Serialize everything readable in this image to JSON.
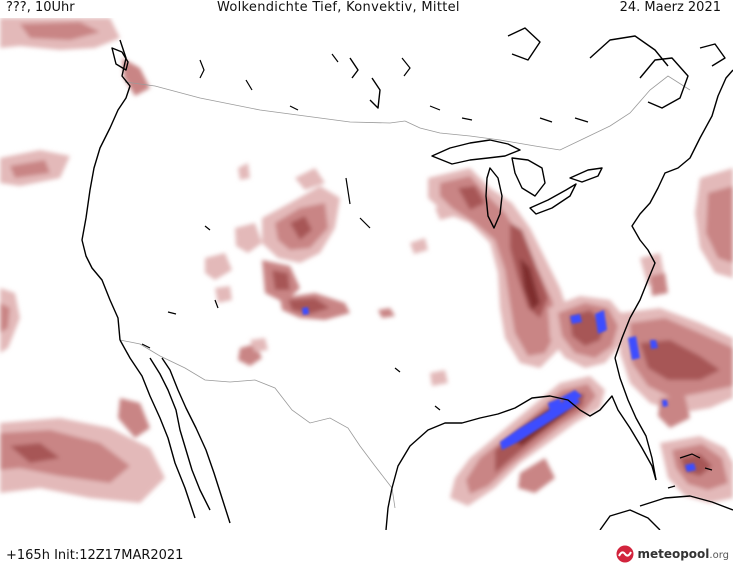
{
  "header": {
    "left_label": "???, 10Uhr",
    "title": "Wolkendichte  Tief, Konvektiv, Mittel",
    "date": "24. Maerz 2021"
  },
  "footer": {
    "run_info": "+165h  Init:12Z17MAR2021",
    "brand": "meteopool",
    "brand_tld": ".org"
  },
  "colors": {
    "cloud_light": "#e3b9b9",
    "cloud_mid": "#c98585",
    "cloud_dark": "#a75656",
    "cloud_max": "#7f2f2f",
    "convective": "#3d4dff",
    "coast": "#000000",
    "border": "#9a9a9a",
    "brand_red": "#d2243d"
  },
  "icons": {
    "logo": "meteopool-logo-icon"
  }
}
